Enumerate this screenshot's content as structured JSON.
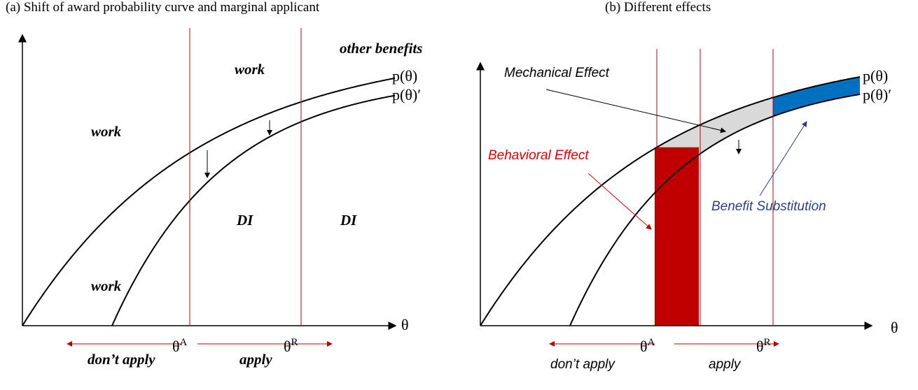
{
  "panel_a": {
    "title": "(a) Shift of award probability curve and marginal applicant",
    "other_benefits": "other benefits",
    "work_top": "work",
    "work_left": "work",
    "work_bottom": "work",
    "di_left": "DI",
    "di_right": "DI",
    "curve": "p(θ)",
    "curve_shifted": "p(θ)′",
    "axis": "θ",
    "theta_a": {
      "base": "θ",
      "sup": "A"
    },
    "theta_r": {
      "base": "θ",
      "sup": "R"
    },
    "dont_apply": "don’t apply",
    "apply": "apply"
  },
  "panel_b": {
    "title": "(b) Different effects",
    "mechanical": "Mechanical Effect",
    "behavioral": "Behavioral Effect",
    "substitution": "Benefit Substitution",
    "curve": "p(θ)",
    "curve_shifted": "p(θ)′",
    "axis": "θ",
    "theta_a": {
      "base": "θ",
      "sup": "A"
    },
    "theta_r": {
      "base": "θ",
      "sup": "R"
    },
    "dont_apply": "don’t apply",
    "apply": "apply"
  }
}
